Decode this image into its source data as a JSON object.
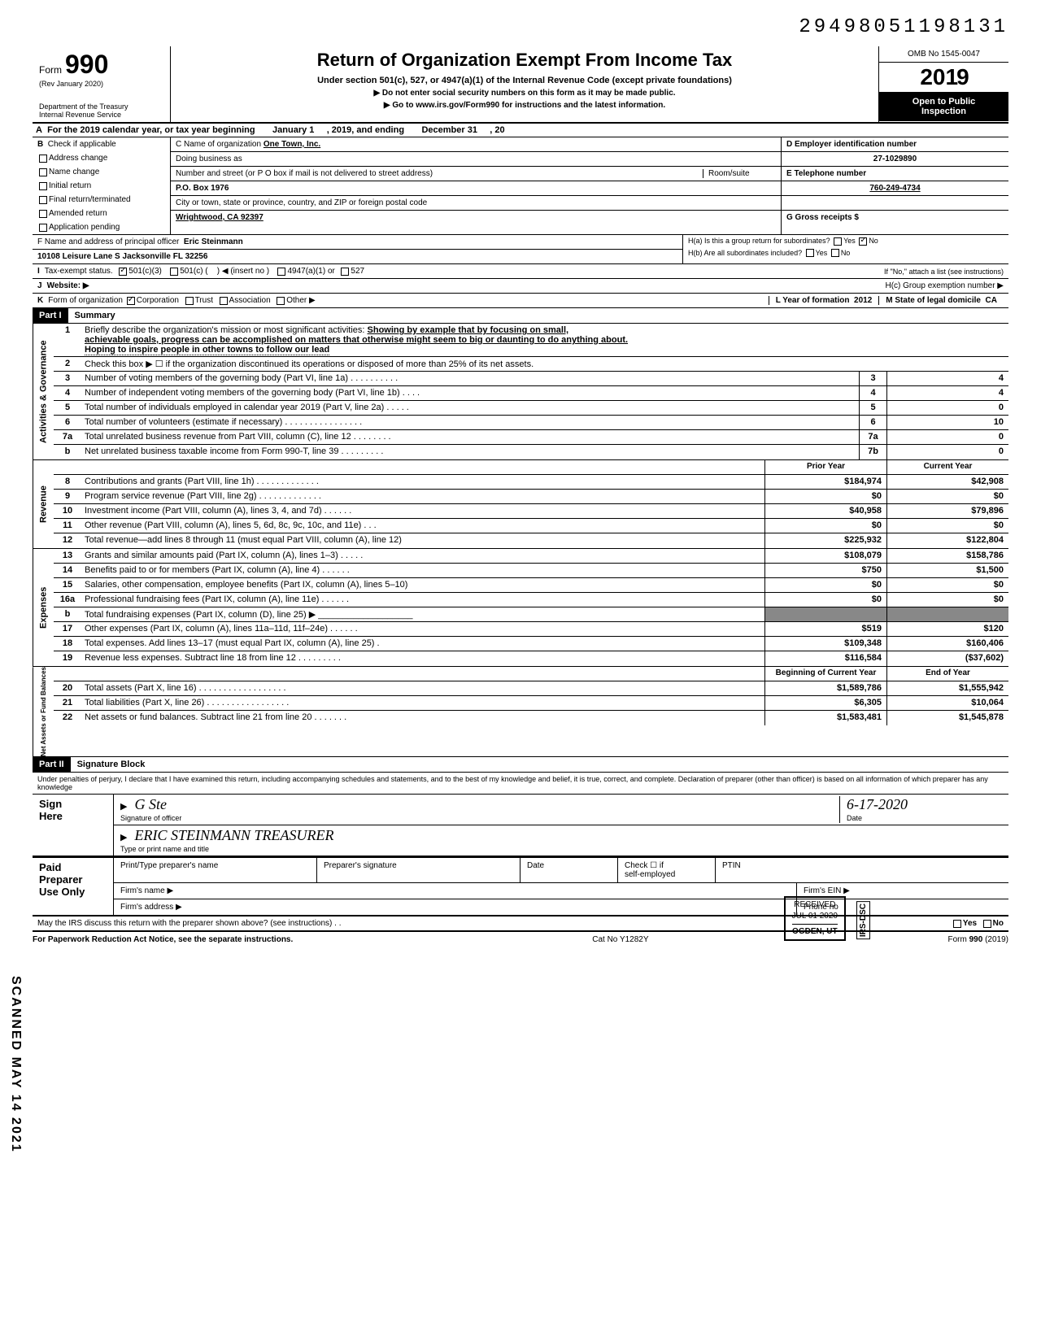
{
  "dln": "29498051198131",
  "header": {
    "form_label": "Form",
    "form_number": "990",
    "rev": "(Rev January 2020)",
    "dept": "Department of the Treasury",
    "irs": "Internal Revenue Service",
    "title": "Return of Organization Exempt From Income Tax",
    "subtitle": "Under section 501(c), 527, or 4947(a)(1) of the Internal Revenue Code (except private foundations)",
    "note1": "▶ Do not enter social security numbers on this form as it may be made public.",
    "note2": "▶ Go to www.irs.gov/Form990 for instructions and the latest information.",
    "omb": "OMB No 1545-0047",
    "year": "2019",
    "public1": "Open to Public",
    "public2": "Inspection"
  },
  "lineA": {
    "lbl": "A",
    "text1": "For the 2019 calendar year, or tax year beginning",
    "begin": "January 1",
    "text2": ", 2019, and ending",
    "end": "December 31",
    "text3": ", 20"
  },
  "B": {
    "lbl": "B",
    "header": "Check if applicable",
    "items": [
      "Address change",
      "Name change",
      "Initial return",
      "Final return/terminated",
      "Amended return",
      "Application pending"
    ]
  },
  "C": {
    "name_lbl": "C Name of organization",
    "name": "One Town, Inc.",
    "dba_lbl": "Doing business as",
    "dba": "",
    "addr_lbl": "Number and street (or P O box if mail is not delivered to street address)",
    "room_lbl": "Room/suite",
    "addr": "P.O. Box 1976",
    "city_lbl": "City or town, state or province, country, and ZIP or foreign postal code",
    "city": "Wrightwood, CA 92397",
    "officer_lbl": "F Name and address of principal officer",
    "officer_name": "Eric Steinmann",
    "officer_addr": "10108 Leisure Lane S Jacksonville FL 32256"
  },
  "D": {
    "lbl": "D Employer identification number",
    "val": "27-1029890"
  },
  "E": {
    "lbl": "E Telephone number",
    "val": "760-249-4734"
  },
  "G": {
    "lbl": "G Gross receipts $",
    "val": ""
  },
  "H": {
    "a": "H(a) Is this a group return for subordinates?",
    "a_yes": "Yes",
    "a_no": "No",
    "b": "H(b) Are all subordinates included?",
    "b_yes": "Yes",
    "b_no": "No",
    "b_note": "If \"No,\" attach a list (see instructions)",
    "c": "H(c) Group exemption number ▶"
  },
  "I": {
    "lbl": "I",
    "text": "Tax-exempt status.",
    "opt1": "501(c)(3)",
    "opt2": "501(c) (",
    "opt2b": ") ◀ (insert no )",
    "opt3": "4947(a)(1) or",
    "opt4": "527"
  },
  "J": {
    "lbl": "J",
    "text": "Website: ▶"
  },
  "K": {
    "lbl": "K",
    "text": "Form of organization",
    "opts": [
      "Corporation",
      "Trust",
      "Association",
      "Other ▶"
    ],
    "L_lbl": "L Year of formation",
    "L_val": "2012",
    "M_lbl": "M State of legal domicile",
    "M_val": "CA"
  },
  "part1": {
    "hdr": "Part I",
    "title": "Summary"
  },
  "gov": {
    "tab": "Activities & Governance",
    "l1_num": "1",
    "l1": "Briefly describe the organization's mission or most significant activities:",
    "l1_val1": "Showing by example that by focusing on small,",
    "l1_val2": "achievable goals, progress can be accomplished on matters that otherwise might seem to big or daunting to do anything about.",
    "l1_val3": "Hoping to inspire people in other towns to follow our lead",
    "l2_num": "2",
    "l2": "Check this box ▶ ☐ if the organization discontinued its operations or disposed of more than 25% of its net assets.",
    "l3_num": "3",
    "l3": "Number of voting members of the governing body (Part VI, line 1a) . . . . . . . . . .",
    "l3_box": "3",
    "l3_val": "4",
    "l4_num": "4",
    "l4": "Number of independent voting members of the governing body (Part VI, line 1b) . . . .",
    "l4_box": "4",
    "l4_val": "4",
    "l5_num": "5",
    "l5": "Total number of individuals employed in calendar year 2019 (Part V, line 2a) . . . . .",
    "l5_box": "5",
    "l5_val": "0",
    "l6_num": "6",
    "l6": "Total number of volunteers (estimate if necessary) . . . . . . . . . . . . . . . .",
    "l6_box": "6",
    "l6_val": "10",
    "l7a_num": "7a",
    "l7a": "Total unrelated business revenue from Part VIII, column (C), line 12 . . . . . . . .",
    "l7a_box": "7a",
    "l7a_val": "0",
    "l7b_num": "b",
    "l7b": "Net unrelated business taxable income from Form 990-T, line 39 . . . . . . . . .",
    "l7b_box": "7b",
    "l7b_val": "0"
  },
  "rev": {
    "tab": "Revenue",
    "h_prior": "Prior Year",
    "h_curr": "Current Year",
    "lines": [
      {
        "n": "8",
        "d": "Contributions and grants (Part VIII, line 1h) . . . . . . . . . . . . .",
        "p": "$184,974",
        "c": "$42,908"
      },
      {
        "n": "9",
        "d": "Program service revenue (Part VIII, line 2g) . . . . . . . . . . . . .",
        "p": "$0",
        "c": "$0"
      },
      {
        "n": "10",
        "d": "Investment income (Part VIII, column (A), lines 3, 4, and 7d) . . . . . .",
        "p": "$40,958",
        "c": "$79,896"
      },
      {
        "n": "11",
        "d": "Other revenue (Part VIII, column (A), lines 5, 6d, 8c, 9c, 10c, and 11e) . . .",
        "p": "$0",
        "c": "$0"
      },
      {
        "n": "12",
        "d": "Total revenue—add lines 8 through 11 (must equal Part VIII, column (A), line 12)",
        "p": "$225,932",
        "c": "$122,804"
      }
    ]
  },
  "exp": {
    "tab": "Expenses",
    "lines": [
      {
        "n": "13",
        "d": "Grants and similar amounts paid (Part IX, column (A), lines 1–3) . . . . .",
        "p": "$108,079",
        "c": "$158,786"
      },
      {
        "n": "14",
        "d": "Benefits paid to or for members (Part IX, column (A), line 4) . . . . . .",
        "p": "$750",
        "c": "$1,500"
      },
      {
        "n": "15",
        "d": "Salaries, other compensation, employee benefits (Part IX, column (A), lines 5–10)",
        "p": "$0",
        "c": "$0"
      },
      {
        "n": "16a",
        "d": "Professional fundraising fees (Part IX, column (A), line 11e) . . . . . .",
        "p": "$0",
        "c": "$0"
      },
      {
        "n": "b",
        "d": "Total fundraising expenses (Part IX, column (D), line 25) ▶ ___________________",
        "p": "",
        "c": "",
        "shade": true
      },
      {
        "n": "17",
        "d": "Other expenses (Part IX, column (A), lines 11a–11d, 11f–24e) . . . . . .",
        "p": "$519",
        "c": "$120"
      },
      {
        "n": "18",
        "d": "Total expenses. Add lines 13–17 (must equal Part IX, column (A), line 25) .",
        "p": "$109,348",
        "c": "$160,406"
      },
      {
        "n": "19",
        "d": "Revenue less expenses. Subtract line 18 from line 12 . . . . . . . . .",
        "p": "$116,584",
        "c": "($37,602)"
      }
    ]
  },
  "net": {
    "tab": "Net Assets or Fund Balances",
    "h_begin": "Beginning of Current Year",
    "h_end": "End of Year",
    "lines": [
      {
        "n": "20",
        "d": "Total assets (Part X, line 16) . . . . . . . . . . . . . . . . . .",
        "p": "$1,589,786",
        "c": "$1,555,942"
      },
      {
        "n": "21",
        "d": "Total liabilities (Part X, line 26) . . . . . . . . . . . . . . . . .",
        "p": "$6,305",
        "c": "$10,064"
      },
      {
        "n": "22",
        "d": "Net assets or fund balances. Subtract line 21 from line 20 . . . . . . .",
        "p": "$1,583,481",
        "c": "$1,545,878"
      }
    ]
  },
  "part2": {
    "hdr": "Part II",
    "title": "Signature Block"
  },
  "jurat": "Under penalties of perjury, I declare that I have examined this return, including accompanying schedules and statements, and to the best of my knowledge and belief, it is true, correct, and complete. Declaration of preparer (other than officer) is based on all information of which preparer has any knowledge",
  "sign": {
    "left1": "Sign",
    "left2": "Here",
    "sig_lbl": "Signature of officer",
    "date_lbl": "Date",
    "date_val": "6-17-2020",
    "name_val": "ERIC STEINMANN    TREASURER",
    "name_lbl": "Type or print name and title"
  },
  "prep": {
    "left1": "Paid",
    "left2": "Preparer",
    "left3": "Use Only",
    "r1c1": "Print/Type preparer's name",
    "r1c2": "Preparer's signature",
    "r1c3": "Date",
    "r1c4a": "Check ☐ if",
    "r1c4b": "self-employed",
    "r1c5": "PTIN",
    "r2a": "Firm's name ▶",
    "r2b": "Firm's EIN ▶",
    "r3a": "Firm's address ▶",
    "r3b": "Phone no"
  },
  "irs_discuss": {
    "text": "May the IRS discuss this return with the preparer shown above? (see instructions) . .",
    "yes": "Yes",
    "no": "No"
  },
  "footer": {
    "left": "For Paperwork Reduction Act Notice, see the separate instructions.",
    "mid": "Cat No Y1282Y",
    "right": "Form 990 (2019)"
  },
  "stamps": {
    "scanned": "SCANNED MAY 14 2021",
    "received1": "RECEIVED",
    "received2": "JUL 01 2020",
    "received3": "OGDEN, UT",
    "irs_dsc": "IRS-DSC"
  }
}
